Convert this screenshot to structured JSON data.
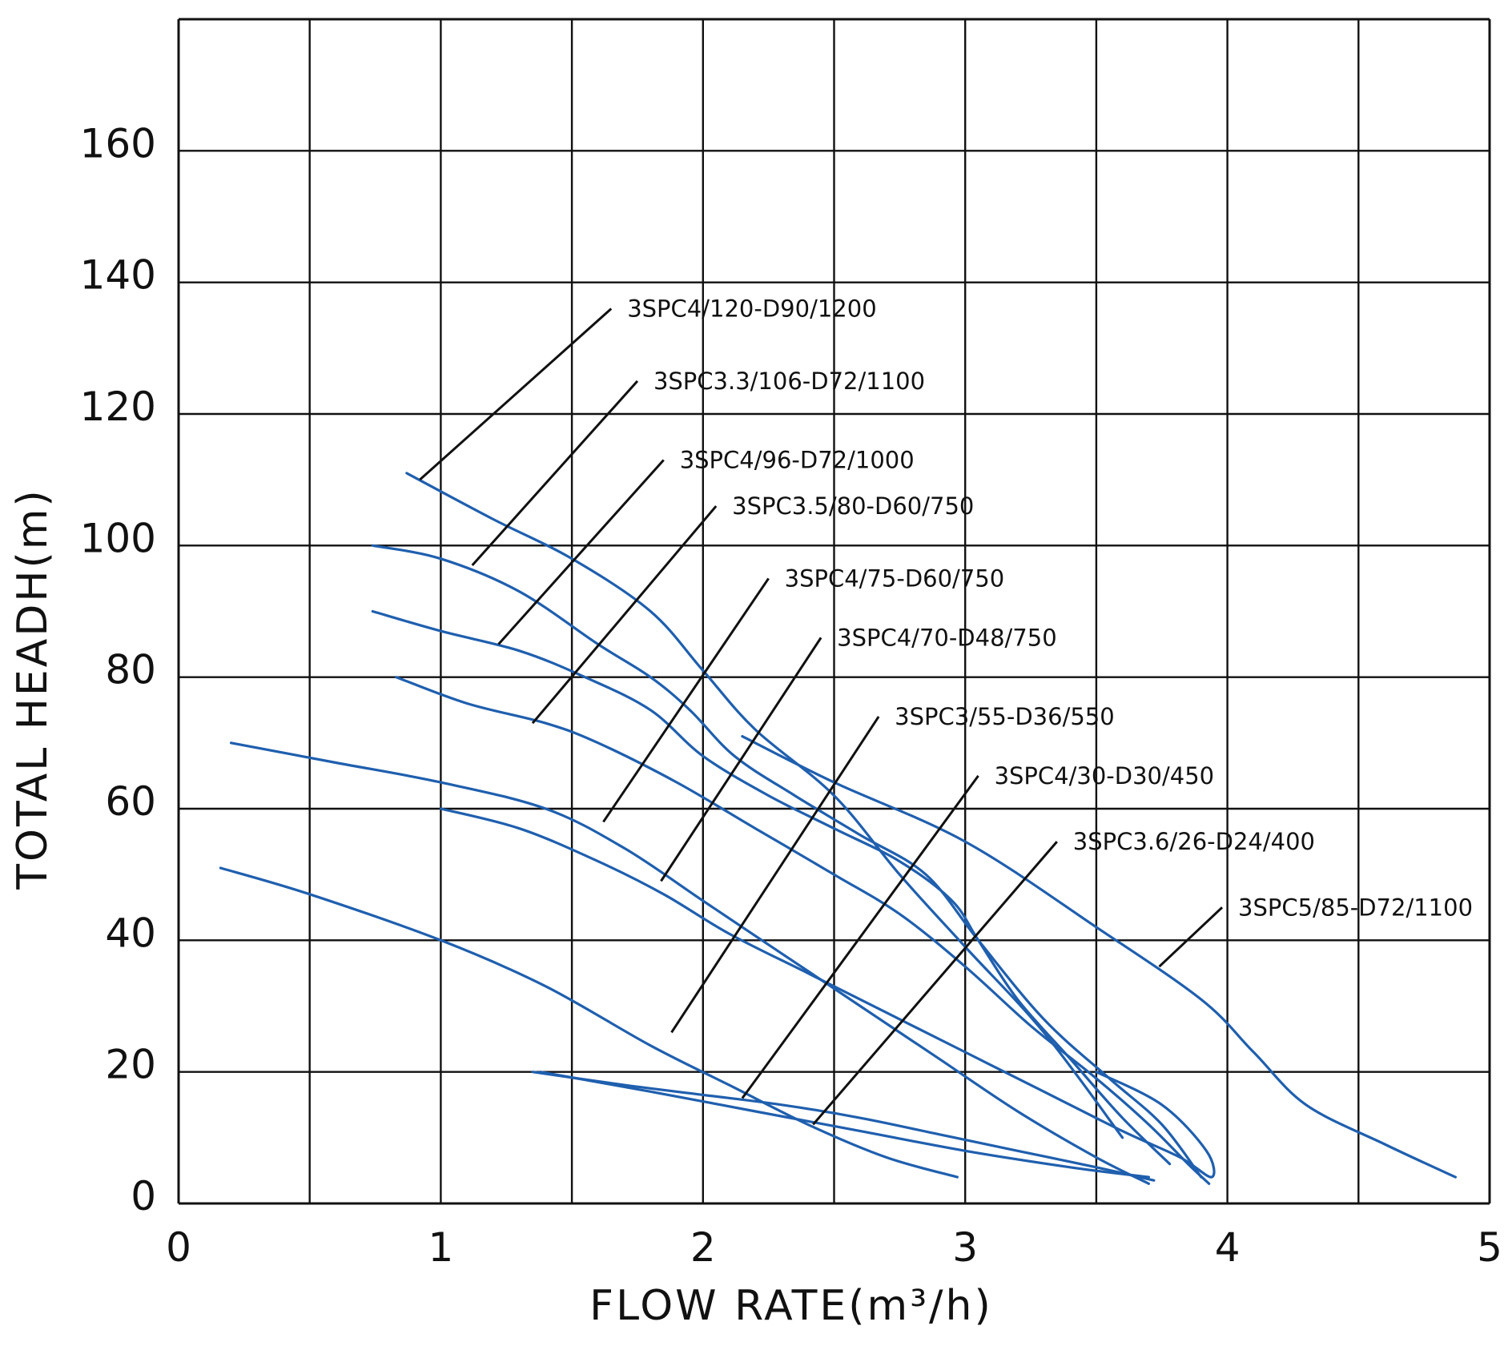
{
  "chart_data": {
    "type": "line",
    "title": "",
    "xlabel": "FLOW RATE(m³/h)",
    "ylabel": "TOTAL HEADH(m)",
    "xlim": [
      0,
      5
    ],
    "ylim": [
      0,
      180
    ],
    "x_ticks": [
      0,
      1,
      2,
      3,
      4,
      5
    ],
    "x_tick_labels": [
      "0",
      "1",
      "2",
      "3",
      "4",
      "5"
    ],
    "y_ticks": [
      0,
      20,
      40,
      60,
      80,
      100,
      120,
      140,
      160
    ],
    "y_tick_labels": [
      "0",
      "20",
      "40",
      "60",
      "80",
      "100",
      "120",
      "140",
      "160"
    ],
    "grid": true,
    "grid_x_step": 0.5,
    "grid_y_step": 20,
    "legend": "none",
    "curve_color": "#1f5fae",
    "series": [
      {
        "name": "3SPC4/120-D90/1200",
        "x": [
          0.87,
          1.2,
          1.5,
          1.8,
          2.0,
          2.2,
          2.5,
          2.75,
          3.0,
          3.3,
          3.6
        ],
        "y": [
          111,
          104,
          98,
          90,
          81,
          72,
          62,
          50,
          39,
          26,
          10
        ]
      },
      {
        "name": "3SPC3.3/106-D72/1100",
        "x": [
          0.74,
          1.0,
          1.3,
          1.6,
          1.8,
          1.95,
          2.12,
          2.35,
          2.6,
          2.85,
          3.05,
          3.3,
          3.55,
          3.75,
          3.9
        ],
        "y": [
          100,
          98,
          93,
          85,
          80,
          75,
          68,
          62,
          56,
          50,
          40,
          28,
          19,
          12,
          4
        ]
      },
      {
        "name": "3SPC4/96-D72/1000",
        "x": [
          0.74,
          1.0,
          1.3,
          1.55,
          1.8,
          2.0,
          2.25,
          2.5,
          2.75,
          2.95,
          3.05,
          3.2,
          3.4,
          3.6,
          3.78
        ],
        "y": [
          90,
          87,
          84,
          80,
          75,
          68,
          62,
          57,
          52,
          46,
          40,
          31,
          22,
          13,
          6
        ]
      },
      {
        "name": "3SPC3.5/80-D60/750",
        "x": [
          0.83,
          1.1,
          1.4,
          1.6,
          1.9,
          2.2,
          2.5,
          2.75,
          3.0,
          3.25,
          3.5,
          3.7,
          3.85,
          3.93
        ],
        "y": [
          80,
          76,
          73,
          70,
          64,
          57,
          50,
          44,
          36,
          27,
          19,
          12,
          6,
          3
        ]
      },
      {
        "name": "3SPC4/75-D60/750",
        "x": [
          0.2,
          0.6,
          1.0,
          1.4,
          1.7,
          2.0,
          2.3,
          2.6,
          2.9,
          3.2,
          3.5,
          3.7
        ],
        "y": [
          70,
          67,
          64,
          60,
          54,
          46,
          38,
          30,
          22,
          14,
          7,
          3
        ]
      },
      {
        "name": "3SPC4/70-D48/750",
        "x": [
          1.0,
          1.3,
          1.6,
          1.85,
          2.1,
          2.4,
          2.7,
          3.0,
          3.3,
          3.6,
          3.82,
          3.94,
          3.92,
          3.75,
          3.5
        ],
        "y": [
          60,
          57,
          52,
          47,
          41,
          35,
          29,
          23,
          17,
          11,
          7,
          4,
          8,
          15,
          20
        ]
      },
      {
        "name": "3SPC3/55-D36/550",
        "x": [
          0.16,
          0.5,
          1.0,
          1.4,
          1.8,
          2.1,
          2.4,
          2.7,
          2.97
        ],
        "y": [
          51,
          47,
          40,
          33,
          24,
          18,
          12,
          7,
          4
        ]
      },
      {
        "name": "3SPC4/30-D30/450",
        "x": [
          1.35,
          1.7,
          2.0,
          2.3,
          2.6,
          2.9,
          3.2,
          3.5,
          3.72
        ],
        "y": [
          20,
          18,
          16.5,
          15,
          13,
          10.5,
          8,
          5.5,
          3.5
        ]
      },
      {
        "name": "3SPC3.6/26-D24/400",
        "x": [
          1.38,
          1.8,
          2.2,
          2.6,
          3.0,
          3.4,
          3.7
        ],
        "y": [
          20,
          17,
          14,
          11,
          8,
          5.5,
          4
        ]
      },
      {
        "name": "3SPC5/85-D72/1100",
        "x": [
          2.15,
          2.5,
          3.0,
          3.5,
          3.9,
          4.1,
          4.3,
          4.6,
          4.87
        ],
        "y": [
          71,
          64,
          55,
          42,
          31,
          23,
          15,
          9,
          4
        ]
      }
    ],
    "annotations": [
      {
        "text": "3SPC4/120-D90/1200",
        "target_x": 0.92,
        "target_y": 110,
        "label_x": 1.65,
        "label_y": 136
      },
      {
        "text": "3SPC3.3/106-D72/1100",
        "target_x": 1.12,
        "target_y": 97,
        "label_x": 1.75,
        "label_y": 125
      },
      {
        "text": "3SPC4/96-D72/1000",
        "target_x": 1.22,
        "target_y": 85,
        "label_x": 1.85,
        "label_y": 113
      },
      {
        "text": "3SPC3.5/80-D60/750",
        "target_x": 1.35,
        "target_y": 73,
        "label_x": 2.05,
        "label_y": 106
      },
      {
        "text": "3SPC4/75-D60/750",
        "target_x": 1.62,
        "target_y": 58,
        "label_x": 2.25,
        "label_y": 95
      },
      {
        "text": "3SPC4/70-D48/750",
        "target_x": 1.84,
        "target_y": 49,
        "label_x": 2.45,
        "label_y": 86
      },
      {
        "text": "3SPC3/55-D36/550",
        "target_x": 1.88,
        "target_y": 26,
        "label_x": 2.67,
        "label_y": 74
      },
      {
        "text": "3SPC4/30-D30/450",
        "target_x": 2.15,
        "target_y": 16,
        "label_x": 3.05,
        "label_y": 65
      },
      {
        "text": "3SPC3.6/26-D24/400",
        "target_x": 2.42,
        "target_y": 12,
        "label_x": 3.35,
        "label_y": 55
      },
      {
        "text": "3SPC5/85-D72/1100",
        "target_x": 3.74,
        "target_y": 36,
        "label_x": 3.98,
        "label_y": 45
      }
    ]
  }
}
